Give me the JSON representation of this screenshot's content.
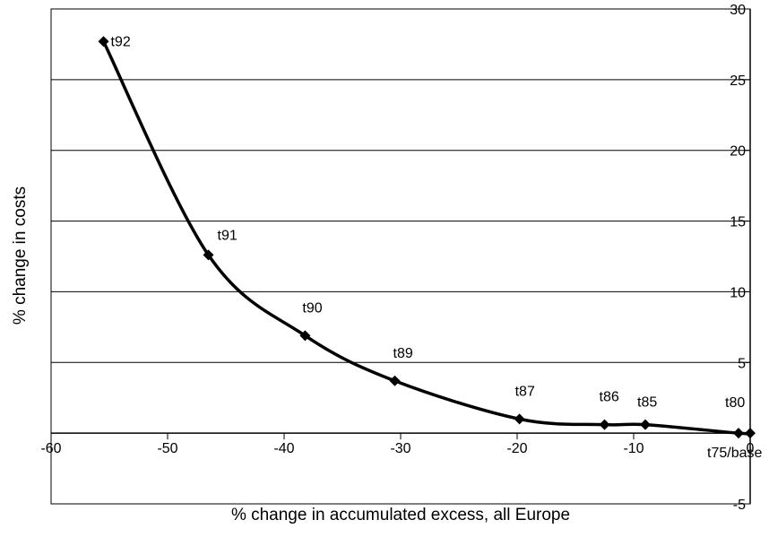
{
  "chart_data": {
    "type": "line",
    "title": "",
    "xlabel": "% change in accumulated excess, all Europe",
    "ylabel": "% change in costs",
    "xlim": [
      -60,
      0
    ],
    "ylim": [
      -5,
      30
    ],
    "x_ticks": [
      -60,
      -50,
      -40,
      -30,
      -20,
      -10,
      0
    ],
    "y_ticks": [
      -5,
      5,
      10,
      15,
      20,
      25,
      30
    ],
    "x_tick_labels": [
      "-60",
      "-50",
      "-40",
      "-30",
      "-20",
      "-10",
      "0"
    ],
    "y_tick_labels": [
      "-5",
      "5",
      "10",
      "15",
      "20",
      "25",
      "30"
    ],
    "grid": "horizontal",
    "legend": "none",
    "line_color": "#000000",
    "marker": "diamond",
    "series": [
      {
        "points": [
          {
            "x": -55.5,
            "y": 27.7,
            "label": "t92"
          },
          {
            "x": -46.5,
            "y": 12.6,
            "label": "t91"
          },
          {
            "x": -38.2,
            "y": 6.9,
            "label": "t90"
          },
          {
            "x": -30.5,
            "y": 3.7,
            "label": "t89"
          },
          {
            "x": -19.8,
            "y": 1.0,
            "label": "t87"
          },
          {
            "x": -12.5,
            "y": 0.6,
            "label": "t86"
          },
          {
            "x": -9.0,
            "y": 0.6,
            "label": "t85"
          },
          {
            "x": -1.0,
            "y": 0.0,
            "label": "t80"
          },
          {
            "x": 0.0,
            "y": 0.0,
            "label": "t75/base"
          }
        ]
      }
    ]
  }
}
